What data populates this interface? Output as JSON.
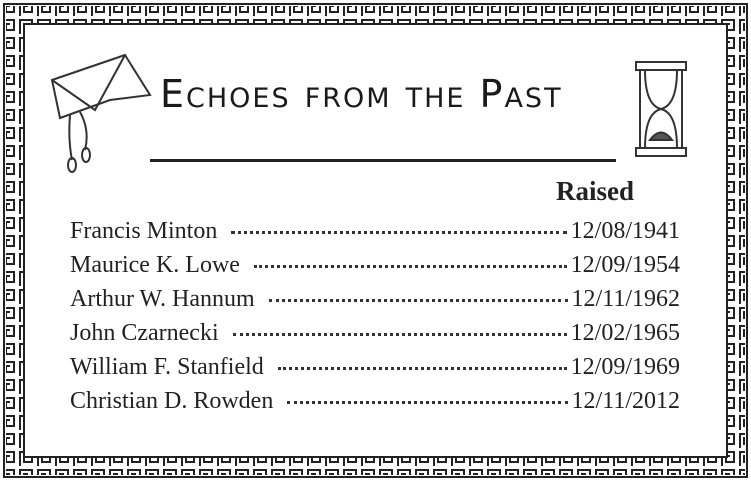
{
  "title": "Echoes from the Past",
  "header": "Raised",
  "rows": [
    {
      "name": "Francis Minton",
      "date": "12/08/1941"
    },
    {
      "name": "Maurice K. Lowe",
      "date": "12/09/1954"
    },
    {
      "name": "Arthur W. Hannum",
      "date": "12/11/1962"
    },
    {
      "name": "John Czarnecki",
      "date": "12/02/1965"
    },
    {
      "name": "William F. Stanfield",
      "date": "12/09/1969"
    },
    {
      "name": "Christian D. Rowden",
      "date": "12/11/2012"
    }
  ]
}
